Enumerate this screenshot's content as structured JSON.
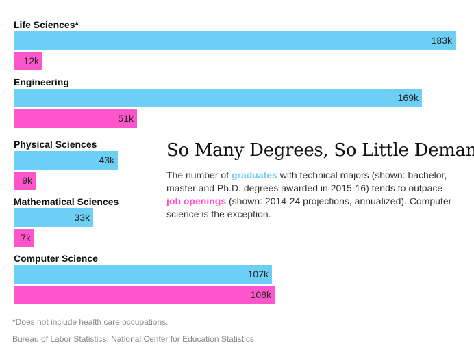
{
  "chart_data": {
    "type": "bar",
    "orientation": "horizontal",
    "title": "So Many Degrees, So Little Demand",
    "unit": "k",
    "xlim": [
      0,
      183
    ],
    "categories": [
      "Life Sciences*",
      "Engineering",
      "Physical Sciences",
      "Mathematical Sciences",
      "Computer Science"
    ],
    "series": [
      {
        "name": "graduates",
        "color": "#6dcff6",
        "values": [
          183,
          169,
          43,
          33,
          107
        ]
      },
      {
        "name": "job openings",
        "color": "#ff55cc",
        "values": [
          12,
          51,
          9,
          7,
          108
        ]
      }
    ]
  },
  "description": {
    "pre": "The number of ",
    "graduates": "graduates",
    "mid": " with technical majors (shown: bachelor, master and Ph.D. degrees awarded in 2015-16) tends to outpace ",
    "job_openings": "job openings",
    "post": " (shown: 2014-24 projections, annualized). Computer science is the exception."
  },
  "footnote": "*Does not include health care occupations.",
  "source": "Bureau of Labor Statistics, National Center for Education Statistics"
}
